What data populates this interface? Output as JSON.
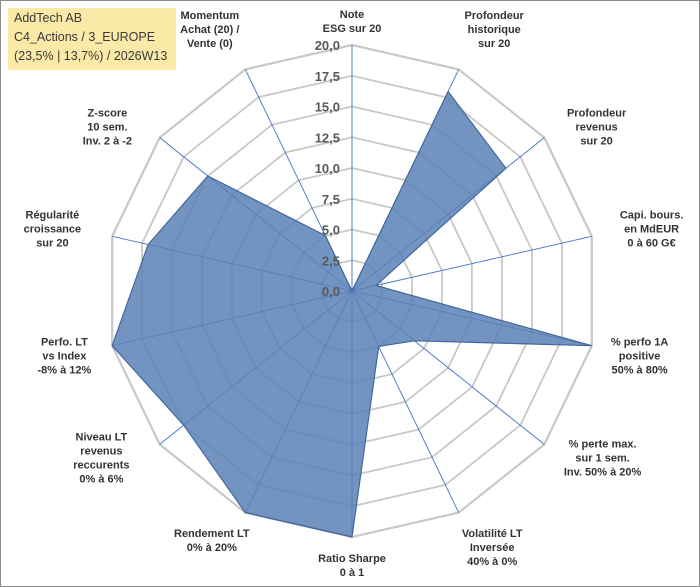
{
  "header": {
    "lines": [
      "AddTech AB",
      "C4_Actions / 3_EUROPE",
      "(23,5% | 13,7%) / 2026W13"
    ]
  },
  "chart_data": {
    "type": "radar",
    "title": "AddTech AB",
    "scale": {
      "min": 0,
      "max": 20,
      "step": 2.5
    },
    "tick_labels": [
      "0,0",
      "2,5",
      "5,0",
      "7,5",
      "10,0",
      "12,5",
      "15,0",
      "17,5",
      "20,0"
    ],
    "axes": [
      {
        "label": [
          "Note",
          "ESG sur 20"
        ],
        "value": 0
      },
      {
        "label": [
          "Profondeur",
          "historique",
          "sur 20"
        ],
        "value": 18
      },
      {
        "label": [
          "Profondeur",
          "revenus",
          "sur 20"
        ],
        "value": 16
      },
      {
        "label": [
          "Capi. bours.",
          "en MdEUR",
          "0 à 60 G€"
        ],
        "value": 2
      },
      {
        "label": [
          "% perfo 1A",
          "positive",
          "50% à 80%"
        ],
        "value": 20
      },
      {
        "label": [
          "% perte max.",
          "sur 1 sem.",
          "Inv. 50% à 20%"
        ],
        "value": 6.5
      },
      {
        "label": [
          "Volatilité LT",
          "Inversée",
          "40% à 0%"
        ],
        "value": 5
      },
      {
        "label": [
          "Ratio Sharpe",
          "0 à 1"
        ],
        "value": 20
      },
      {
        "label": [
          "Rendement LT",
          "0% à 20%"
        ],
        "value": 20
      },
      {
        "label": [
          "Niveau LT",
          "revenus",
          "reccurents",
          "0% à 6%"
        ],
        "value": 17.5
      },
      {
        "label": [
          "Perfo. LT",
          "vs Index",
          "-8% à 12%"
        ],
        "value": 20
      },
      {
        "label": [
          "Régularité",
          "croissance",
          "sur 20"
        ],
        "value": 17
      },
      {
        "label": [
          "Z-score",
          "10 sem.",
          "Inv. 2 à -2"
        ],
        "value": 15
      },
      {
        "label": [
          "Momentum",
          "Achat (20) /",
          "Vente (0)"
        ],
        "value": 5
      }
    ],
    "series": [
      {
        "name": "AddTech AB",
        "color": "#4a72aa"
      }
    ],
    "colors": {
      "grid": "#c8c8c8",
      "spoke": "#4472c4",
      "fill": "#5a81b6",
      "stroke": "#41689c"
    }
  }
}
